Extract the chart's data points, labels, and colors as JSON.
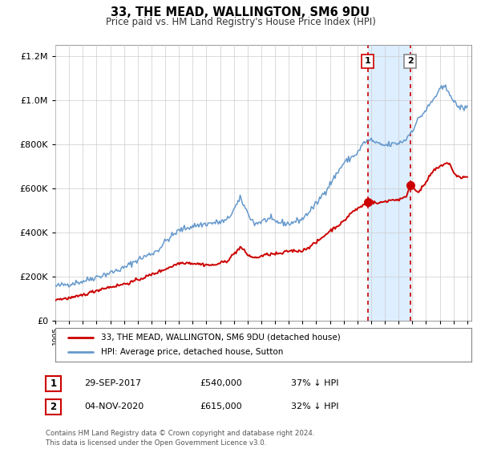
{
  "title": "33, THE MEAD, WALLINGTON, SM6 9DU",
  "subtitle": "Price paid vs. HM Land Registry's House Price Index (HPI)",
  "legend_label_red": "33, THE MEAD, WALLINGTON, SM6 9DU (detached house)",
  "legend_label_blue": "HPI: Average price, detached house, Sutton",
  "annotation1_date": "29-SEP-2017",
  "annotation1_price": "£540,000",
  "annotation1_hpi": "37% ↓ HPI",
  "annotation1_year": 2017.75,
  "annotation1_value": 540000,
  "annotation2_date": "04-NOV-2020",
  "annotation2_price": "£615,000",
  "annotation2_hpi": "32% ↓ HPI",
  "annotation2_year": 2020.84,
  "annotation2_value": 615000,
  "footer": "Contains HM Land Registry data © Crown copyright and database right 2024.\nThis data is licensed under the Open Government Licence v3.0.",
  "red_color": "#cc0000",
  "blue_color": "#6699cc",
  "shade_color": "#ddeeff",
  "background_color": "#ffffff",
  "grid_color": "#cccccc",
  "ylim_max": 1250000,
  "xlim_start": 1995,
  "xlim_end": 2025.3
}
